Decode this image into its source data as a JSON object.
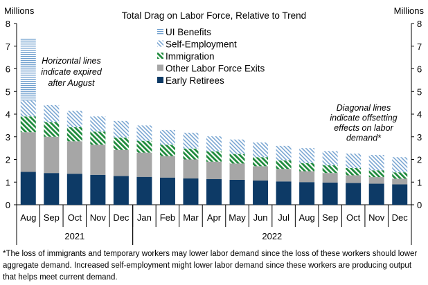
{
  "chart_data": {
    "type": "bar",
    "stacked": true,
    "title": "Total Drag on Labor Force, Relative to Trend",
    "ylabel_left": "Millions",
    "ylabel_right": "Millions",
    "ylim": [
      0,
      8
    ],
    "yticks": [
      0,
      1,
      2,
      3,
      4,
      5,
      6,
      7,
      8
    ],
    "categories": [
      "Aug",
      "Sep",
      "Oct",
      "Nov",
      "Dec",
      "Jan",
      "Feb",
      "Mar",
      "Apr",
      "May",
      "Jun",
      "Jul",
      "Aug",
      "Sep",
      "Oct",
      "Nov",
      "Dec"
    ],
    "year_groups": [
      {
        "label": "2021",
        "start": 0,
        "end": 4
      },
      {
        "label": "2022",
        "start": 5,
        "end": 16
      }
    ],
    "series": [
      {
        "name": "Early Retirees",
        "color": "#0d3a66",
        "pattern": "solid",
        "values": [
          1.45,
          1.4,
          1.37,
          1.32,
          1.27,
          1.23,
          1.2,
          1.16,
          1.13,
          1.1,
          1.07,
          1.03,
          1.0,
          0.98,
          0.96,
          0.93,
          0.9
        ]
      },
      {
        "name": "Other Labor Force Exits",
        "color": "#a6a6a6",
        "pattern": "solid",
        "values": [
          1.75,
          1.6,
          1.43,
          1.33,
          1.15,
          1.07,
          0.95,
          0.84,
          0.77,
          0.72,
          0.63,
          0.55,
          0.48,
          0.42,
          0.34,
          0.29,
          0.25
        ]
      },
      {
        "name": "Immigration",
        "color": "#1e8a3c",
        "pattern": "diagonal-thick",
        "values": [
          0.7,
          0.65,
          0.62,
          0.58,
          0.55,
          0.52,
          0.5,
          0.48,
          0.46,
          0.42,
          0.4,
          0.38,
          0.36,
          0.34,
          0.32,
          0.3,
          0.28
        ]
      },
      {
        "name": "Self-Employment",
        "color": "#6f9fce",
        "pattern": "diagonal",
        "values": [
          0.7,
          0.75,
          0.73,
          0.67,
          0.73,
          0.68,
          0.65,
          0.7,
          0.66,
          0.64,
          0.65,
          0.64,
          0.66,
          0.63,
          0.64,
          0.68,
          0.67
        ]
      },
      {
        "name": "UI Benefits",
        "color": "#5b8ec7",
        "pattern": "horizontal",
        "values": [
          2.75,
          0,
          0,
          0,
          0,
          0,
          0,
          0,
          0,
          0,
          0,
          0,
          0,
          0,
          0,
          0,
          0
        ]
      }
    ],
    "legend_order": [
      "UI Benefits",
      "Self-Employment",
      "Immigration",
      "Other Labor Force Exits",
      "Early Retirees"
    ],
    "annotations": [
      {
        "name": "horizontal-lines-note",
        "lines": [
          "Horizontal lines",
          "indicate expired",
          "after August"
        ]
      },
      {
        "name": "diagonal-lines-note",
        "lines": [
          "Diagonal lines",
          "indicate offsetting",
          "effects on labor",
          "demand*"
        ]
      }
    ],
    "footnote": "*The loss of immigrants and temporary workers may lower labor demand since the loss of these workers should lower aggregate demand. Increased self-employment might lower labor demand since these workers are producing output that helps meet current demand."
  }
}
